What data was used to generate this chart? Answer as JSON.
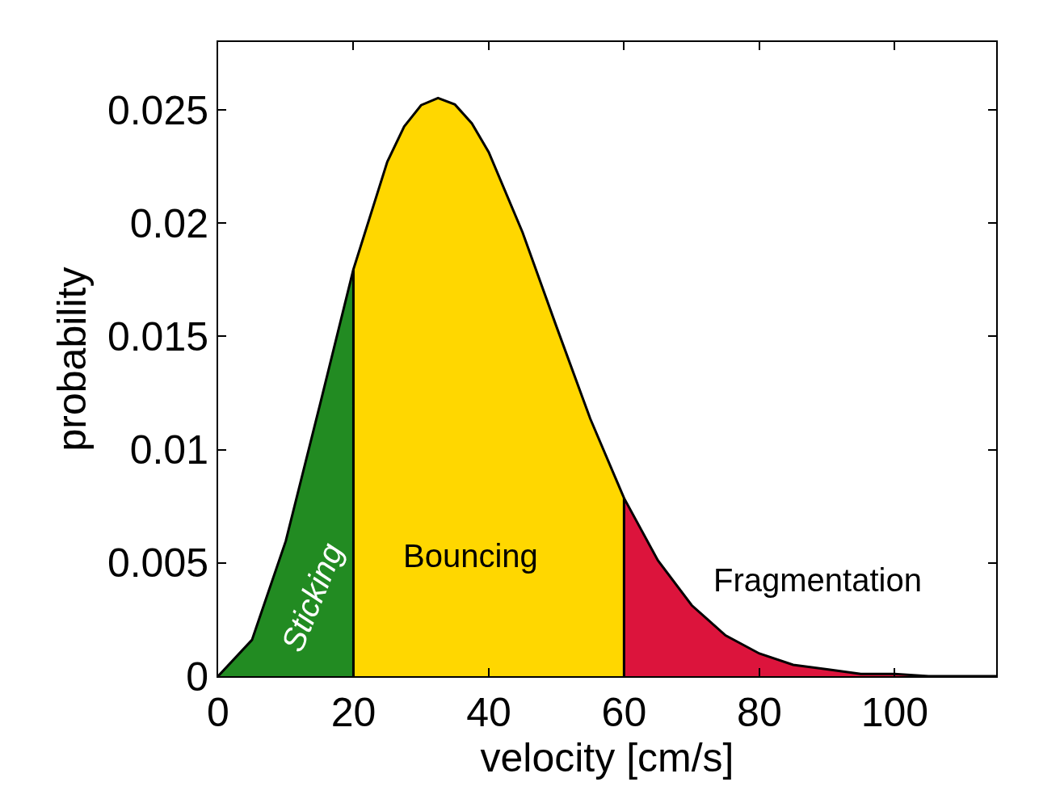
{
  "chart_data": {
    "type": "area",
    "xlabel": "velocity [cm/s]",
    "ylabel": "probability",
    "xlim": [
      0,
      115
    ],
    "ylim": [
      0,
      0.028
    ],
    "xticks": [
      0,
      20,
      40,
      60,
      80,
      100
    ],
    "yticks": [
      0,
      0.005,
      0.01,
      0.015,
      0.02,
      0.025
    ],
    "series": [
      {
        "color": "#228b22",
        "x": [
          0,
          5,
          10,
          15,
          20,
          20
        ],
        "values": [
          0,
          0.0016,
          0.00597,
          0.01193,
          0.01797,
          0
        ]
      },
      {
        "color": "#ffd700",
        "x": [
          20,
          20,
          25,
          27.5,
          30,
          32.5,
          35,
          37.5,
          40,
          45,
          50,
          55,
          60,
          60
        ],
        "values": [
          0,
          0.01797,
          0.02271,
          0.02427,
          0.02521,
          0.02553,
          0.02524,
          0.02441,
          0.02313,
          0.01959,
          0.01544,
          0.01137,
          0.00786,
          0
        ]
      },
      {
        "color": "#dc143c",
        "x": [
          60,
          60,
          65,
          70,
          75,
          80,
          85,
          90,
          95,
          100,
          105,
          110,
          115
        ],
        "values": [
          0,
          0.00786,
          0.00511,
          0.00313,
          0.0018,
          0.001,
          0.0005,
          0.0003,
          0.0001,
          0.0001,
          0,
          0,
          0
        ]
      }
    ],
    "annotations": [
      "Sticking",
      "Bouncing",
      "Fragmentation"
    ]
  }
}
